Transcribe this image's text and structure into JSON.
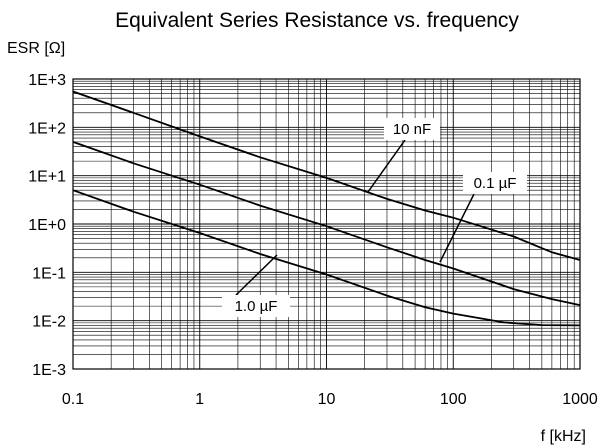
{
  "chart_data": {
    "type": "line",
    "title": "Equivalent Series Resistance vs. frequency",
    "xlabel": "f [kHz]",
    "ylabel": "ESR [Ω]",
    "x_scale": "log",
    "y_scale": "log",
    "xlim": [
      0.1,
      1000
    ],
    "ylim": [
      0.001,
      1000
    ],
    "x_ticks": [
      {
        "value": 0.1,
        "label": "0.1"
      },
      {
        "value": 1,
        "label": "1"
      },
      {
        "value": 10,
        "label": "10"
      },
      {
        "value": 100,
        "label": "100"
      },
      {
        "value": 1000,
        "label": "1000"
      }
    ],
    "y_ticks": [
      {
        "value": 1000,
        "label": "1E+3"
      },
      {
        "value": 100,
        "label": "1E+2"
      },
      {
        "value": 10,
        "label": "1E+1"
      },
      {
        "value": 1,
        "label": "1E+0"
      },
      {
        "value": 0.1,
        "label": "1E-1"
      },
      {
        "value": 0.01,
        "label": "1E-2"
      },
      {
        "value": 0.001,
        "label": "1E-3"
      }
    ],
    "grid": true,
    "line_color": "#000000",
    "series": [
      {
        "name": "10 nF",
        "x": [
          0.1,
          0.3,
          1,
          3,
          10,
          30,
          60,
          100,
          300,
          600,
          1000
        ],
        "y": [
          550,
          200,
          65,
          24,
          9,
          3.3,
          1.9,
          1.35,
          0.55,
          0.26,
          0.18
        ]
      },
      {
        "name": "0.1 µF",
        "x": [
          0.1,
          0.3,
          1,
          3,
          10,
          30,
          60,
          100,
          300,
          600,
          1000
        ],
        "y": [
          50,
          18,
          6.5,
          2.4,
          0.9,
          0.33,
          0.18,
          0.12,
          0.045,
          0.028,
          0.021
        ]
      },
      {
        "name": "1.0 µF",
        "x": [
          0.1,
          0.3,
          1,
          3,
          10,
          30,
          60,
          100,
          250,
          500,
          1000
        ],
        "y": [
          5,
          1.8,
          0.65,
          0.24,
          0.09,
          0.033,
          0.019,
          0.014,
          0.0092,
          0.0081,
          0.008
        ]
      }
    ]
  }
}
